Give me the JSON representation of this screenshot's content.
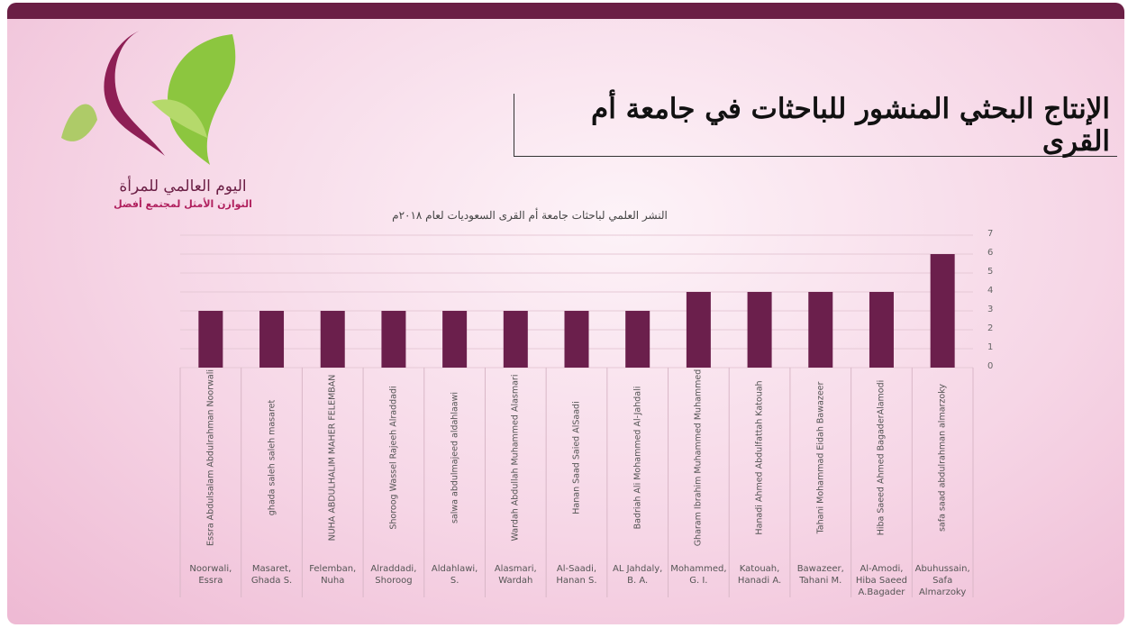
{
  "slide_title": "الإنتاج البحثي المنشور للباحثات في جامعة أم القرى",
  "logo": {
    "title": "اليوم العالمي للمرأة",
    "subtitle": "التوازن الأمثل لمجتمع أفضل"
  },
  "chart_data": {
    "type": "bar",
    "title": "النشر العلمي لباحثات جامعة أم القرى السعوديات لعام ٢٠١٨م",
    "categories": [
      "Noorwali, Essra",
      "Masaret, Ghada S.",
      "Felemban, Nuha",
      "Alraddadi, Shoroog",
      "Aldahlawi, S.",
      "Alasmari, Wardah",
      "Al-Saadi, Hanan S.",
      "AL Jahdaly, B. A.",
      "Mohammed, G. I.",
      "Katouah, Hanadi A.",
      "Bawazeer, Tahani M.",
      "Al-Amodi, Hiba Saeed A.Bagader",
      "Abuhussain, Safa Almarzoky"
    ],
    "full_names": [
      "Essra Abdulsalam Abdulrahman Noorwali",
      "ghada saleh saleh masaret",
      "NUHA ABDULHALIM MAHER FELEMBAN",
      "Shoroog Wassel Rajeeh Alraddadi",
      "salwa abdulmajeed aldahlaawi",
      "Wardah Abdullah Muhammed Alasmari",
      "Hanan Saad Saied AlSaadi",
      "Badriah Ali Mohammed Al-Jahdali",
      "Gharam Ibrahim Muhammed Muhammed",
      "Hanadi Ahmed Abdulfattah Katouah",
      "Tahani Mohammad Eidah Bawazeer",
      "Hiba Saeed Ahmed BagaderAlamodi",
      "safa saad abdulrahman almarzoky"
    ],
    "values": [
      3,
      3,
      3,
      3,
      3,
      3,
      3,
      3,
      4,
      4,
      4,
      4,
      6
    ],
    "color": "#6b1f4c",
    "ylim": [
      0,
      7
    ],
    "yticks": [
      0,
      1,
      2,
      3,
      4,
      5,
      6,
      7
    ],
    "grid": true,
    "y_axis_side": "right"
  }
}
